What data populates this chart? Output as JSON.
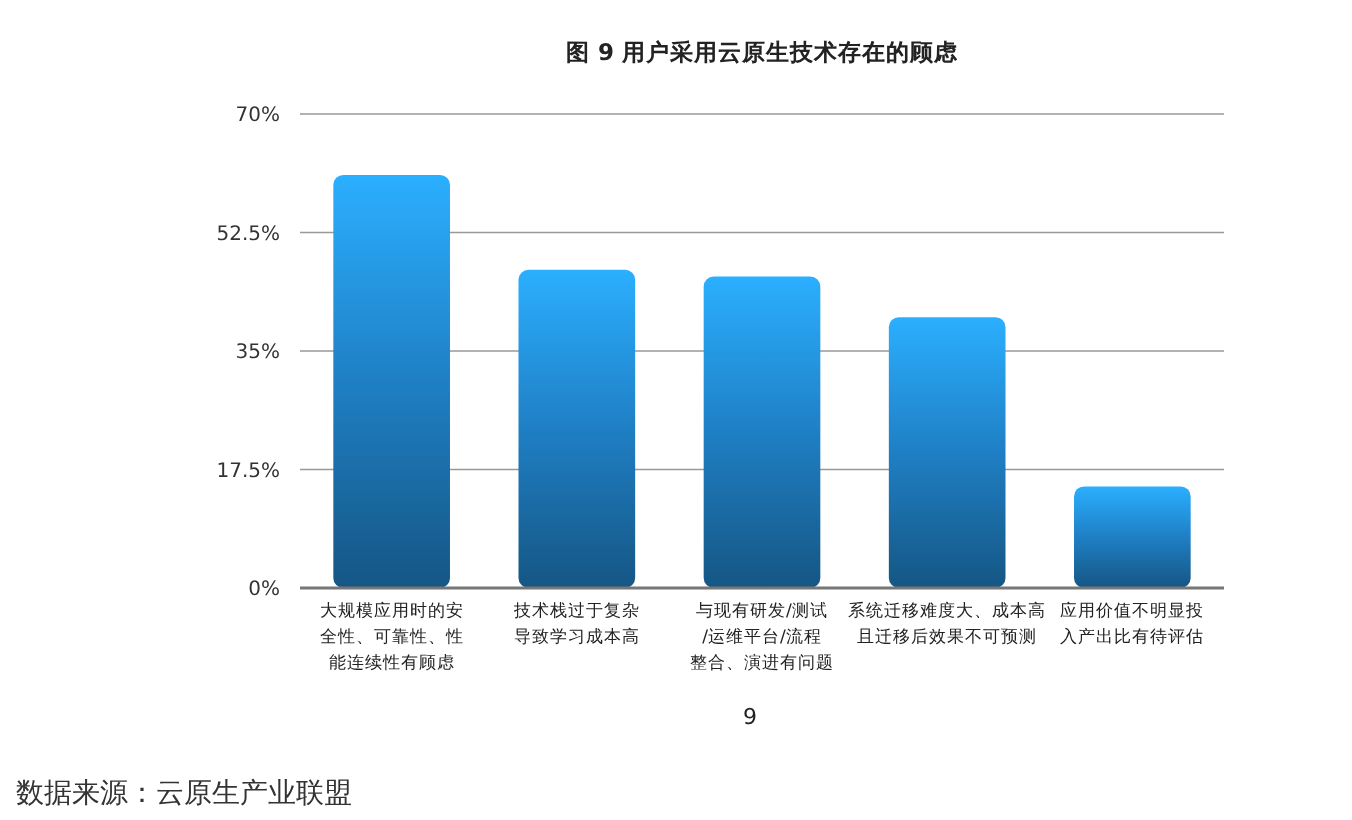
{
  "chart_data": {
    "type": "bar",
    "title": "图 9  用户采用云原生技术存在的顾虑",
    "categories": [
      "大规模应用时的安全性、可靠性、性能连续性有顾虑",
      "技术栈过于复杂导致学习成本高",
      "与现有研发/测试/运维平台/流程整合、演进有问题",
      "系统迁移难度大、成本高且迁移后效果不可预测",
      "应用价值不明显投入产出比有待评估"
    ],
    "values": [
      61,
      47,
      46,
      40,
      15
    ],
    "color": "#1f7fc4",
    "ylim": [
      0,
      70
    ],
    "yticks": [
      {
        "value": 0,
        "label": "0%"
      },
      {
        "value": 17.5,
        "label": "17.5%"
      },
      {
        "value": 35,
        "label": "35%"
      },
      {
        "value": 52.5,
        "label": "52.5%"
      },
      {
        "value": 70,
        "label": "70%"
      }
    ],
    "grid": "y",
    "annotations": [
      "9",
      "数据来源：云原生产业联盟"
    ]
  }
}
